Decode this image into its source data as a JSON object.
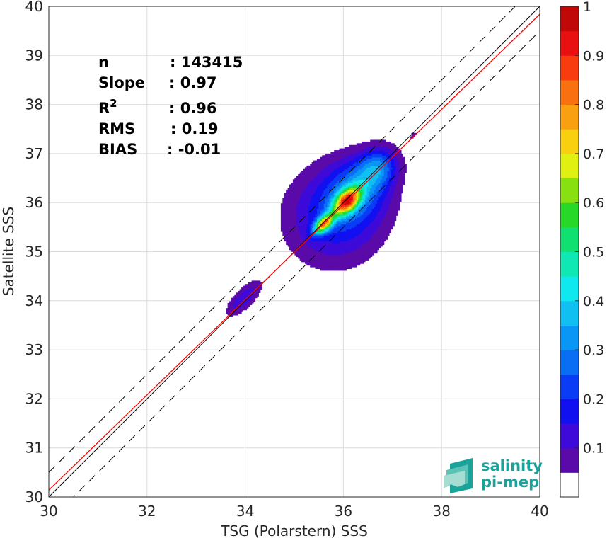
{
  "chart_data": {
    "type": "heatmap",
    "subtype": "density-contour-scatter",
    "xlabel": "TSG (Polarstern) SSS",
    "ylabel": "Satellite SSS",
    "xlim": [
      30,
      40
    ],
    "ylim": [
      30,
      40
    ],
    "xticks": [
      30,
      32,
      34,
      36,
      38,
      40
    ],
    "yticks": [
      30,
      31,
      32,
      33,
      34,
      35,
      36,
      37,
      38,
      39,
      40
    ],
    "grid": true,
    "stats": [
      {
        "label": "n",
        "value": ": 143415"
      },
      {
        "label": "Slope",
        "value": ": 0.97"
      },
      {
        "label": "R",
        "sup": "2",
        "value": ": 0.96"
      },
      {
        "label": "RMS",
        "value": ": 0.19"
      },
      {
        "label": "BIAS",
        "value": ": -0.01"
      }
    ],
    "reference_lines": {
      "identity": {
        "slope": 1,
        "intercept": 0,
        "color": "#000000",
        "style": "solid"
      },
      "regression": {
        "slope": 0.97,
        "intercept": 1.04,
        "color": "#ff0000",
        "style": "solid"
      },
      "bounds": {
        "offset": 0.5,
        "color": "#000000",
        "style": "dashed"
      }
    },
    "density_clusters": [
      {
        "x": 33.97,
        "y": 34.05,
        "sx": 0.32,
        "sy": 0.26,
        "r": 0.4,
        "weight": 0.22
      },
      {
        "x": 35.6,
        "y": 35.57,
        "sx": 0.17,
        "sy": 0.14,
        "r": 0.55,
        "weight": 0.92
      },
      {
        "x": 36.07,
        "y": 36.03,
        "sx": 0.23,
        "sy": 0.2,
        "r": 0.6,
        "weight": 1.0
      },
      {
        "x": 36.7,
        "y": 36.72,
        "sx": 0.3,
        "sy": 0.16,
        "r": 0.85,
        "weight": 0.35
      },
      {
        "x": 35.85,
        "y": 35.75,
        "sx": 0.7,
        "sy": 0.25,
        "r": 0.95,
        "weight": 0.3
      },
      {
        "x": 36.3,
        "y": 36.3,
        "sx": 0.45,
        "sy": 0.18,
        "r": 0.9,
        "weight": 0.3
      },
      {
        "x": 37.42,
        "y": 37.37,
        "sx": 0.07,
        "sy": 0.05,
        "r": 0.5,
        "weight": 0.12
      }
    ],
    "colorbar": {
      "min": 0,
      "max": 1,
      "ticks": [
        "0.1",
        "0.2",
        "0.3",
        "0.4",
        "0.5",
        "0.6",
        "0.7",
        "0.8",
        "0.9",
        "1"
      ],
      "levels": [
        0.05,
        0.1,
        0.15,
        0.2,
        0.25,
        0.3,
        0.35,
        0.4,
        0.45,
        0.5,
        0.55,
        0.6,
        0.65,
        0.7,
        0.75,
        0.8,
        0.85,
        0.9,
        0.95,
        1.0
      ],
      "colors": [
        "#ffffff",
        "#5a0aa8",
        "#3d0ad9",
        "#1010f0",
        "#0a3cf5",
        "#0a6ef5",
        "#0a96f5",
        "#10c0f0",
        "#10e8f0",
        "#10e8b4",
        "#10e070",
        "#28d828",
        "#88e010",
        "#e0f010",
        "#f8d010",
        "#f8a010",
        "#f87010",
        "#f83c10",
        "#e81010",
        "#c00808",
        "#800000"
      ]
    }
  },
  "logo": {
    "line1": "salinity",
    "line2": "pi-mep"
  }
}
